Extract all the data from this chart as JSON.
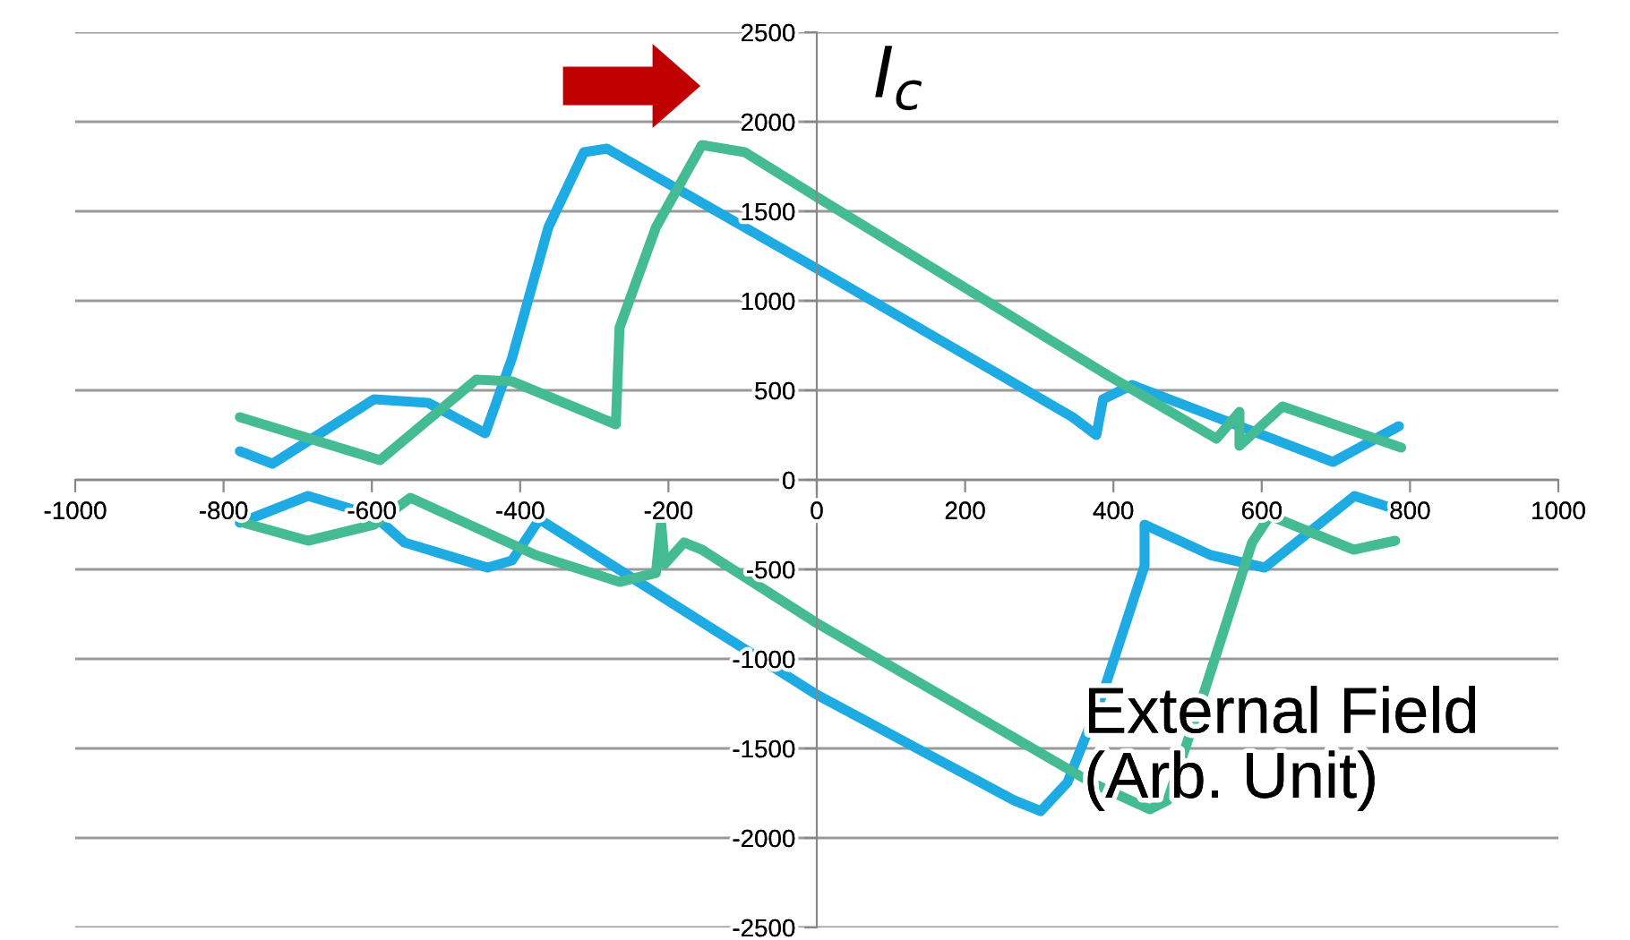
{
  "chart_data": {
    "type": "line",
    "xlabel": "External Field\n(Arb. Unit)",
    "ylabel": "I$_{c}$",
    "series": [
      {
        "color": "#1eaae2",
        "x": [
          -778,
          -734,
          -597,
          -524,
          -447,
          -411,
          -362,
          -314,
          -283,
          0,
          345,
          377,
          386,
          425,
          696,
          785
        ],
        "values": [
          160,
          90,
          450,
          430,
          260,
          680,
          1410,
          1830,
          1850,
          1180,
          350,
          250,
          450,
          530,
          100,
          300
        ]
      },
      {
        "color": "#1eaae2",
        "x": [
          -778,
          -686,
          -597,
          -556,
          -444,
          -411,
          -374,
          0,
          266,
          302,
          338,
          386,
          442,
          442,
          531,
          604,
          725,
          785
        ],
        "values": [
          -240,
          -90,
          -200,
          -350,
          -490,
          -450,
          -220,
          -1200,
          -1790,
          -1850,
          -1690,
          -1190,
          -480,
          -250,
          -420,
          -490,
          -90,
          -170
        ]
      },
      {
        "color": "#45bb93",
        "x": [
          -778,
          -589,
          -459,
          -411,
          -271,
          -266,
          -217,
          -155,
          -97,
          0,
          394,
          539,
          570,
          570,
          628,
          788
        ],
        "values": [
          350,
          110,
          560,
          550,
          310,
          850,
          1410,
          1870,
          1830,
          1580,
          580,
          230,
          380,
          190,
          410,
          180
        ]
      },
      {
        "color": "#45bb93",
        "x": [
          -773,
          -686,
          -597,
          -548,
          -379,
          -266,
          -217,
          -210,
          -205,
          -179,
          -155,
          0,
          370,
          449,
          473,
          522,
          587,
          611,
          724,
          780
        ],
        "values": [
          -240,
          -340,
          -250,
          -100,
          -420,
          -570,
          -520,
          -240,
          -470,
          -350,
          -390,
          -800,
          -1690,
          -1840,
          -1790,
          -1190,
          -350,
          -200,
          -390,
          -340
        ]
      }
    ],
    "xlim": [
      -1000,
      1000
    ],
    "xticks": [
      -1000,
      -800,
      -600,
      -400,
      -200,
      0,
      200,
      400,
      600,
      800,
      1000
    ],
    "ylim": [
      -2500,
      2500
    ],
    "yticks": [
      -2500,
      -2000,
      -1500,
      -1000,
      -500,
      0,
      500,
      1000,
      1500,
      2000,
      2500
    ],
    "grid": "y",
    "legend": false,
    "marker": "none",
    "line_style": "solid"
  }
}
